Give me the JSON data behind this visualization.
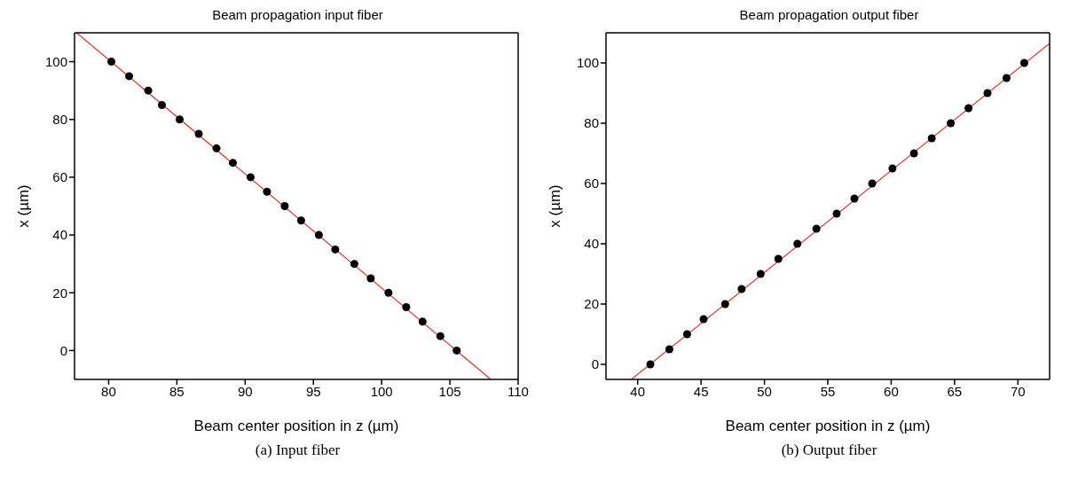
{
  "chart_data": [
    {
      "type": "scatter",
      "title": "Beam propagation input fiber",
      "xlabel": "Beam center position in z (µm)",
      "ylabel": "x (µm)",
      "xlim": [
        77.5,
        110
      ],
      "xticks": [
        80,
        85,
        90,
        95,
        100,
        105,
        110
      ],
      "ylim": [
        -10,
        110
      ],
      "yticks": [
        0,
        20,
        40,
        60,
        80,
        100
      ],
      "annotations": [
        "(a) Input fiber"
      ],
      "series": [
        {
          "marker": "circle",
          "color": "#000000",
          "x": [
            80.2,
            81.5,
            82.9,
            83.9,
            85.2,
            86.6,
            87.9,
            89.1,
            90.4,
            91.6,
            92.9,
            94.1,
            95.4,
            96.6,
            98.0,
            99.2,
            100.5,
            101.8,
            103.0,
            104.3,
            105.5
          ],
          "values": [
            100,
            95,
            90,
            85,
            80,
            75,
            70,
            65,
            60,
            55,
            50,
            45,
            40,
            35,
            30,
            25,
            20,
            15,
            10,
            5,
            0
          ]
        },
        {
          "type": "line",
          "color": "#e8312f",
          "x": [
            77.65,
            108.0
          ],
          "values": [
            110,
            -10
          ]
        }
      ]
    },
    {
      "type": "scatter",
      "title": "Beam propagation output fiber",
      "xlabel": "Beam center position in z (µm)",
      "ylabel": "x (µm)",
      "xlim": [
        37.5,
        72.5
      ],
      "xticks": [
        40,
        45,
        50,
        55,
        60,
        65,
        70
      ],
      "ylim": [
        -5,
        110
      ],
      "yticks": [
        0,
        20,
        40,
        60,
        80,
        100
      ],
      "annotations": [
        "(b) Output fiber"
      ],
      "series": [
        {
          "marker": "circle",
          "color": "#000000",
          "x": [
            41.0,
            42.5,
            43.9,
            45.2,
            46.9,
            48.2,
            49.7,
            51.1,
            52.6,
            54.1,
            55.7,
            57.1,
            58.5,
            60.1,
            61.8,
            63.2,
            64.7,
            66.1,
            67.6,
            69.1,
            70.5
          ],
          "values": [
            0,
            5,
            10,
            15,
            20,
            25,
            30,
            35,
            40,
            45,
            50,
            55,
            60,
            65,
            70,
            75,
            80,
            85,
            90,
            95,
            100
          ]
        },
        {
          "type": "line",
          "color": "#e8312f",
          "x": [
            39.5,
            72.5
          ],
          "values": [
            -5,
            106.5
          ]
        }
      ]
    }
  ]
}
